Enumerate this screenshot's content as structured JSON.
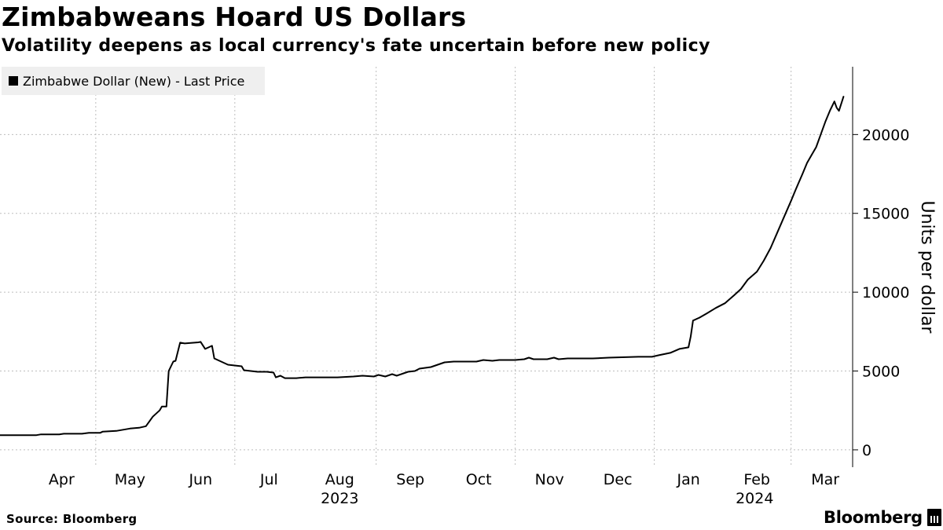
{
  "header": {
    "title": "Zimbabweans Hoard US Dollars",
    "subtitle": "Volatility deepens as local currency's fate uncertain before new policy"
  },
  "legend": {
    "label": "Zimbabwe Dollar (New) - Last Price",
    "color": "#000000"
  },
  "footer": {
    "source": "Source: Bloomberg",
    "brand": "Bloomberg"
  },
  "chart_data": {
    "type": "line",
    "title": "Zimbabweans Hoard US Dollars",
    "subtitle": "Volatility deepens as local currency's fate uncertain before new policy",
    "xlabel": "",
    "ylabel": "Units per dollar",
    "ylim": [
      -1100,
      24300
    ],
    "y_ticks": [
      0,
      5000,
      10000,
      15000,
      20000
    ],
    "y_tick_labels": [
      "0",
      "5000",
      "10000",
      "15000",
      "20000"
    ],
    "x_range": [
      "2023-03-20",
      "2024-03-28"
    ],
    "x_months": [
      {
        "date": "2023-04-01",
        "label": "Apr"
      },
      {
        "date": "2023-05-01",
        "label": "May"
      },
      {
        "date": "2023-06-01",
        "label": "Jun"
      },
      {
        "date": "2023-07-01",
        "label": "Jul"
      },
      {
        "date": "2023-08-01",
        "label": "Aug"
      },
      {
        "date": "2023-09-01",
        "label": "Sep"
      },
      {
        "date": "2023-10-01",
        "label": "Oct"
      },
      {
        "date": "2023-11-01",
        "label": "Nov"
      },
      {
        "date": "2023-12-01",
        "label": "Dec"
      },
      {
        "date": "2024-01-01",
        "label": "Jan"
      },
      {
        "date": "2024-02-01",
        "label": "Feb"
      },
      {
        "date": "2024-03-01",
        "label": "Mar"
      }
    ],
    "x_year_labels": [
      {
        "date": "2023-08-16",
        "label": "2023"
      },
      {
        "date": "2024-02-14",
        "label": "2024"
      }
    ],
    "x_gridlines": [
      "2023-05-01",
      "2023-07-01",
      "2023-09-01",
      "2023-11-01",
      "2024-01-01",
      "2024-03-01"
    ],
    "grid": true,
    "legend_position": "top-left",
    "series": [
      {
        "name": "Zimbabwe Dollar (New) - Last Price",
        "color": "#000000",
        "points": [
          [
            "2023-03-20",
            930
          ],
          [
            "2023-04-05",
            930
          ],
          [
            "2023-04-07",
            980
          ],
          [
            "2023-04-15",
            980
          ],
          [
            "2023-04-17",
            1020
          ],
          [
            "2023-04-25",
            1020
          ],
          [
            "2023-04-28",
            1080
          ],
          [
            "2023-05-03",
            1080
          ],
          [
            "2023-05-04",
            1150
          ],
          [
            "2023-05-10",
            1200
          ],
          [
            "2023-05-12",
            1250
          ],
          [
            "2023-05-16",
            1350
          ],
          [
            "2023-05-20",
            1400
          ],
          [
            "2023-05-23",
            1500
          ],
          [
            "2023-05-26",
            2100
          ],
          [
            "2023-05-29",
            2500
          ],
          [
            "2023-05-30",
            2750
          ],
          [
            "2023-06-01",
            2750
          ],
          [
            "2023-06-02",
            5000
          ],
          [
            "2023-06-04",
            5600
          ],
          [
            "2023-06-05",
            5650
          ],
          [
            "2023-06-07",
            6800
          ],
          [
            "2023-06-09",
            6750
          ],
          [
            "2023-06-15",
            6820
          ],
          [
            "2023-06-16",
            6850
          ],
          [
            "2023-06-18",
            6400
          ],
          [
            "2023-06-21",
            6600
          ],
          [
            "2023-06-22",
            5800
          ],
          [
            "2023-06-25",
            5600
          ],
          [
            "2023-06-28",
            5400
          ],
          [
            "2023-07-01",
            5350
          ],
          [
            "2023-07-04",
            5300
          ],
          [
            "2023-07-05",
            5050
          ],
          [
            "2023-07-08",
            5000
          ],
          [
            "2023-07-11",
            4950
          ],
          [
            "2023-07-15",
            4950
          ],
          [
            "2023-07-18",
            4900
          ],
          [
            "2023-07-19",
            4600
          ],
          [
            "2023-07-21",
            4700
          ],
          [
            "2023-07-23",
            4550
          ],
          [
            "2023-07-28",
            4550
          ],
          [
            "2023-08-01",
            4600
          ],
          [
            "2023-08-10",
            4600
          ],
          [
            "2023-08-15",
            4600
          ],
          [
            "2023-08-22",
            4650
          ],
          [
            "2023-08-26",
            4700
          ],
          [
            "2023-08-31",
            4650
          ],
          [
            "2023-09-02",
            4750
          ],
          [
            "2023-09-05",
            4650
          ],
          [
            "2023-09-08",
            4800
          ],
          [
            "2023-09-10",
            4700
          ],
          [
            "2023-09-13",
            4850
          ],
          [
            "2023-09-15",
            4950
          ],
          [
            "2023-09-18",
            5000
          ],
          [
            "2023-09-20",
            5150
          ],
          [
            "2023-09-25",
            5250
          ],
          [
            "2023-09-27",
            5350
          ],
          [
            "2023-09-29",
            5450
          ],
          [
            "2023-10-01",
            5550
          ],
          [
            "2023-10-05",
            5600
          ],
          [
            "2023-10-15",
            5600
          ],
          [
            "2023-10-18",
            5700
          ],
          [
            "2023-10-22",
            5650
          ],
          [
            "2023-10-25",
            5700
          ],
          [
            "2023-11-01",
            5700
          ],
          [
            "2023-11-05",
            5750
          ],
          [
            "2023-11-07",
            5850
          ],
          [
            "2023-11-09",
            5750
          ],
          [
            "2023-11-15",
            5750
          ],
          [
            "2023-11-18",
            5850
          ],
          [
            "2023-11-20",
            5750
          ],
          [
            "2023-11-24",
            5800
          ],
          [
            "2023-12-05",
            5800
          ],
          [
            "2023-12-12",
            5850
          ],
          [
            "2023-12-25",
            5900
          ],
          [
            "2023-12-31",
            5900
          ],
          [
            "2024-01-03",
            6000
          ],
          [
            "2024-01-08",
            6150
          ],
          [
            "2024-01-12",
            6400
          ],
          [
            "2024-01-16",
            6500
          ],
          [
            "2024-01-17",
            7200
          ],
          [
            "2024-01-18",
            8200
          ],
          [
            "2024-01-21",
            8400
          ],
          [
            "2024-01-24",
            8650
          ],
          [
            "2024-01-28",
            9000
          ],
          [
            "2024-02-01",
            9300
          ],
          [
            "2024-02-05",
            9800
          ],
          [
            "2024-02-08",
            10200
          ],
          [
            "2024-02-11",
            10800
          ],
          [
            "2024-02-15",
            11300
          ],
          [
            "2024-02-18",
            12000
          ],
          [
            "2024-02-21",
            12800
          ],
          [
            "2024-02-24",
            13800
          ],
          [
            "2024-02-27",
            14800
          ],
          [
            "2024-03-01",
            15800
          ],
          [
            "2024-03-03",
            16500
          ],
          [
            "2024-03-06",
            17500
          ],
          [
            "2024-03-08",
            18200
          ],
          [
            "2024-03-10",
            18700
          ],
          [
            "2024-03-12",
            19200
          ],
          [
            "2024-03-14",
            20000
          ],
          [
            "2024-03-16",
            20800
          ],
          [
            "2024-03-18",
            21500
          ],
          [
            "2024-03-20",
            22100
          ],
          [
            "2024-03-21",
            21700
          ],
          [
            "2024-03-22",
            21500
          ],
          [
            "2024-03-24",
            22400
          ]
        ]
      }
    ]
  }
}
